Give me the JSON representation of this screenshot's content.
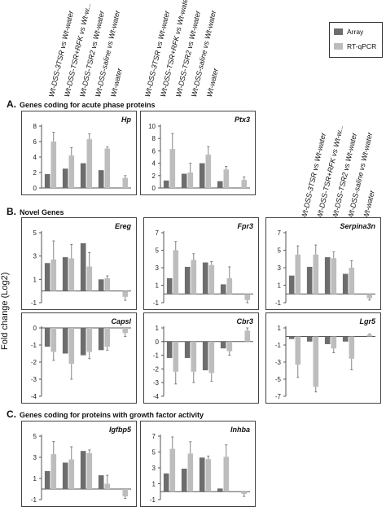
{
  "categories": [
    "Wt-DSS-3TSR vs Wt-water",
    "Wt-DSS-TSR+RFK vs Wt-w...",
    "Wt-DSS-TSR2 vs Wt-water",
    "Wt-DSS-saline vs Wt-water",
    "Wt-water"
  ],
  "header_labels": {
    "left": [
      "Wt-DSS-3TSR vs Wt-water",
      "Wt-DSS-TSR+RFK vs Wt-w...",
      "Wt-DSS-TSR2 vs Wt-water",
      "Wt-DSS-saline vs Wt-water",
      "Wt-water"
    ],
    "middle": [
      "Wt-DSS-3TSR vs Wt-water",
      "Wt-DSS-TSR+RFK vs Wt-water",
      "Wt-DSS-TSR2 vs Wt-water",
      "Wt-DSS-saline vs Wt-water",
      "Wt-water"
    ],
    "right": [
      "Wt-DSS-3TSR vs Wt-water",
      "Wt-DSS-TSR+RFK vs Wt-w...",
      "Wt-DSS-TSR2 vs Wt-water",
      "Wt-DSS-saline vs Wt-water",
      "Wt-water"
    ]
  },
  "legend": [
    {
      "name": "Array",
      "color": "#6d6d6d"
    },
    {
      "name": "RT-qPCR",
      "color": "#bdbdbd"
    }
  ],
  "sections": {
    "A": {
      "letter": "A.",
      "title": "Genes coding for acute phase proteins"
    },
    "B": {
      "letter": "B.",
      "title": "Novel Genes"
    },
    "C": {
      "letter": "C.",
      "title": "Genes coding for proteins with growth factor activity"
    }
  },
  "yaxis_title": "Fold change (Log2)",
  "chart_data": [
    {
      "type": "bar",
      "gene": "Hp",
      "ylim": [
        0,
        8
      ],
      "yticks": [
        "0",
        "2",
        "4",
        "6",
        "8"
      ],
      "series": [
        {
          "name": "Array",
          "values": [
            1.8,
            2.5,
            3.2,
            2.3,
            null
          ],
          "errors": [
            0,
            0,
            0,
            0,
            0
          ]
        },
        {
          "name": "RT-qPCR",
          "values": [
            6.0,
            4.2,
            6.3,
            5.1,
            1.3
          ],
          "errors": [
            1.2,
            1.0,
            0.7,
            0.2,
            0.3
          ]
        }
      ]
    },
    {
      "type": "bar",
      "gene": "Ptx3",
      "ylim": [
        0,
        10
      ],
      "yticks": [
        "0",
        "2",
        "4",
        "6",
        "8",
        "10"
      ],
      "series": [
        {
          "name": "Array",
          "values": [
            1.2,
            2.3,
            4.0,
            1.1,
            null
          ],
          "errors": [
            0,
            0,
            0,
            0,
            0
          ]
        },
        {
          "name": "RT-qPCR",
          "values": [
            6.3,
            2.5,
            5.4,
            3.0,
            1.3
          ],
          "errors": [
            2.5,
            1.5,
            1.3,
            0.5,
            0.5
          ]
        }
      ]
    },
    {
      "type": "bar",
      "gene": "Ereg",
      "ylim": [
        -1,
        5
      ],
      "yticks": [
        "-1",
        "1",
        "3",
        "5"
      ],
      "series": [
        {
          "name": "Array",
          "values": [
            2.4,
            2.9,
            4.1,
            1.0,
            null
          ],
          "errors": [
            0,
            0,
            0,
            0,
            0
          ]
        },
        {
          "name": "RT-qPCR",
          "values": [
            2.7,
            2.8,
            2.1,
            1.1,
            -0.5
          ],
          "errors": [
            1.6,
            1.2,
            1.2,
            0.2,
            0.3
          ]
        }
      ]
    },
    {
      "type": "bar",
      "gene": "Fpr3",
      "ylim": [
        -1,
        7
      ],
      "yticks": [
        "-1",
        "1",
        "3",
        "5",
        "7"
      ],
      "series": [
        {
          "name": "Array",
          "values": [
            1.8,
            3.1,
            3.6,
            1.1,
            null
          ],
          "errors": [
            0,
            0,
            0,
            0,
            0
          ]
        },
        {
          "name": "RT-qPCR",
          "values": [
            5.0,
            3.9,
            3.3,
            1.8,
            -0.7
          ],
          "errors": [
            1.0,
            0.7,
            0.4,
            1.3,
            0.3
          ]
        }
      ]
    },
    {
      "type": "bar",
      "gene": "Serpina3n",
      "ylim": [
        -1,
        7
      ],
      "yticks": [
        "-1",
        "1",
        "3",
        "5",
        "7"
      ],
      "series": [
        {
          "name": "Array",
          "values": [
            2.1,
            3.1,
            4.2,
            2.3,
            null
          ],
          "errors": [
            0,
            0,
            0,
            0,
            0
          ]
        },
        {
          "name": "RT-qPCR",
          "values": [
            4.5,
            4.5,
            4.1,
            3.0,
            -0.5
          ],
          "errors": [
            1.0,
            1.1,
            0.7,
            0.8,
            0.2
          ]
        }
      ]
    },
    {
      "type": "bar",
      "gene": "Capsl",
      "ylim": [
        -4,
        0
      ],
      "yticks": [
        "-4",
        "-3",
        "-2",
        "-1",
        "0"
      ],
      "series": [
        {
          "name": "Array",
          "values": [
            -1.1,
            -1.5,
            -1.6,
            -1.3,
            null
          ],
          "errors": [
            0,
            0,
            0,
            0,
            0
          ]
        },
        {
          "name": "RT-qPCR",
          "values": [
            -1.4,
            -2.1,
            -1.4,
            -1.1,
            -0.3
          ],
          "errors": [
            0.5,
            0.9,
            0.4,
            0.2,
            0.2
          ]
        }
      ]
    },
    {
      "type": "bar",
      "gene": "Cbr3",
      "ylim": [
        -4,
        1
      ],
      "yticks": [
        "-4",
        "-3",
        "-2",
        "-1",
        "0",
        "1"
      ],
      "series": [
        {
          "name": "Array",
          "values": [
            -1.2,
            -1.2,
            -2.1,
            -0.5,
            null
          ],
          "errors": [
            0,
            0,
            0,
            0,
            0
          ]
        },
        {
          "name": "RT-qPCR",
          "values": [
            -2.2,
            -2.2,
            -2.3,
            -0.7,
            0.8
          ],
          "errors": [
            0.9,
            0.8,
            0.6,
            0.3,
            0.2
          ]
        }
      ]
    },
    {
      "type": "bar",
      "gene": "Lgr5",
      "ylim": [
        -7,
        1
      ],
      "yticks": [
        "-7",
        "-5",
        "-3",
        "-1",
        "1"
      ],
      "series": [
        {
          "name": "Array",
          "values": [
            -0.3,
            -0.6,
            -0.9,
            -0.6,
            null
          ],
          "errors": [
            0,
            0,
            0,
            0,
            0
          ]
        },
        {
          "name": "RT-qPCR",
          "values": [
            -3.3,
            -5.9,
            -1.4,
            -2.6,
            0.2
          ],
          "errors": [
            1.5,
            0.6,
            0.5,
            1.3,
            0.1
          ]
        }
      ]
    },
    {
      "type": "bar",
      "gene": "Igfbp5",
      "ylim": [
        -1,
        5
      ],
      "yticks": [
        "-1",
        "1",
        "3",
        "5"
      ],
      "series": [
        {
          "name": "Array",
          "values": [
            1.7,
            2.5,
            3.6,
            1.3,
            null
          ],
          "errors": [
            0,
            0,
            0,
            0,
            0
          ]
        },
        {
          "name": "RT-qPCR",
          "values": [
            3.3,
            2.8,
            3.4,
            0.5,
            -0.7
          ],
          "errors": [
            1.2,
            1.2,
            0.3,
            0.8,
            0.2
          ]
        }
      ]
    },
    {
      "type": "bar",
      "gene": "Inhba",
      "ylim": [
        -1,
        7
      ],
      "yticks": [
        "-1",
        "1",
        "3",
        "5",
        "7"
      ],
      "series": [
        {
          "name": "Array",
          "values": [
            2.3,
            2.9,
            4.3,
            0.4,
            null
          ],
          "errors": [
            0,
            0,
            0,
            0,
            0
          ]
        },
        {
          "name": "RT-qPCR",
          "values": [
            5.4,
            4.8,
            4.1,
            4.4,
            -0.3
          ],
          "errors": [
            1.5,
            1.5,
            0.4,
            1.5,
            0.3
          ]
        }
      ]
    }
  ]
}
